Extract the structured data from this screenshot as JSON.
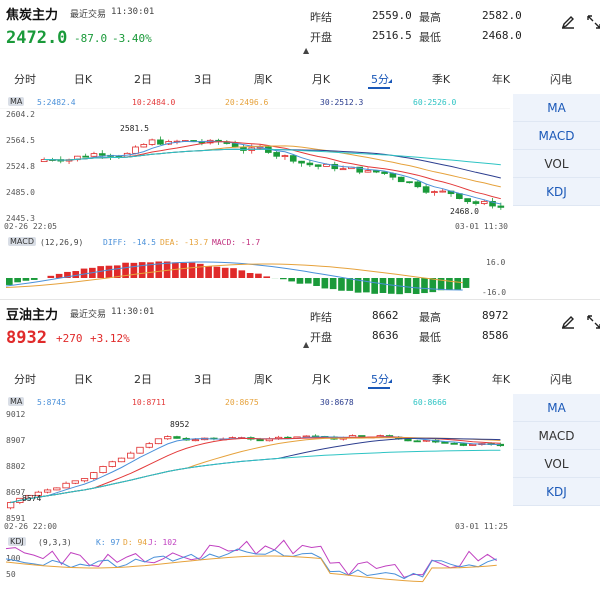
{
  "colors": {
    "up": "#e02a2a",
    "down": "#1a9a3a",
    "active": "#1a58b8",
    "ma5": "#4a90d9",
    "ma10": "#e33a3a",
    "ma20": "#e6a23c",
    "ma30": "#2c3e8f",
    "ma60": "#2ec4c4",
    "dif": "#4a90d9",
    "dea": "#e6a23c",
    "macd": "#c0307e",
    "k": "#4a90d9",
    "d": "#e6a23c",
    "j": "#c040c0"
  },
  "tabs": [
    "分时",
    "日K",
    "2日",
    "3日",
    "周K",
    "月K",
    "5分",
    "季K",
    "年K",
    "闪电"
  ],
  "side_menu": [
    "MA",
    "MACD",
    "VOL",
    "KDJ"
  ],
  "panels": [
    {
      "name": "焦炭主力",
      "time_label": "最近交易",
      "time": "11:30:01",
      "price": "2472.0",
      "change": "-87.0",
      "change_pct": "-3.40%",
      "quote": {
        "prev_close_label": "昨结",
        "prev_close": "2559.0",
        "high_label": "最高",
        "high": "2582.0",
        "open_label": "开盘",
        "open": "2516.5",
        "low_label": "最低",
        "low": "2468.0"
      },
      "ma_line": {
        "tag": "MA",
        "ma5": "5:2482.4",
        "ma10": "10:2484.0",
        "ma20": "20:2496.6",
        "ma30": "30:2512.3",
        "ma60": "60:2526.0"
      },
      "y_ticks": [
        "2604.2",
        "2564.5",
        "2524.8",
        "2485.0",
        "2445.3"
      ],
      "x_start": "02-26 22:05",
      "x_end": "03-01 11:30",
      "max_mark": "2581.5",
      "min_mark": "2468.0",
      "sub_tag": "MACD",
      "sub_params": "(12,26,9)",
      "sub_values": {
        "a": "DIFF: -14.5",
        "b": "DEA: -13.7",
        "c": "MACD: -1.7"
      },
      "sub_ticks": [
        "16.0",
        "-16.0"
      ],
      "side_active": [
        0,
        1,
        3
      ]
    },
    {
      "name": "豆油主力",
      "time_label": "最近交易",
      "time": "11:30:01",
      "price": "8932",
      "change": "+270",
      "change_pct": "+3.12%",
      "quote": {
        "prev_close_label": "昨结",
        "prev_close": "8662",
        "high_label": "最高",
        "high": "8972",
        "open_label": "开盘",
        "open": "8636",
        "low_label": "最低",
        "low": "8586"
      },
      "ma_line": {
        "tag": "MA",
        "ma5": "5:8745",
        "ma10": "10:8711",
        "ma20": "20:8675",
        "ma30": "30:8678",
        "ma60": "60:8666"
      },
      "y_ticks": [
        "9012",
        "8907",
        "8802",
        "8697",
        "8591"
      ],
      "x_start": "02-26 22:00",
      "x_end": "03-01 11:25",
      "max_mark": "8952",
      "min_mark": "8574",
      "sub_tag": "KDJ",
      "sub_params": "(9,3,3)",
      "sub_values": {
        "a": "K: 97",
        "b": "D: 94",
        "c": "J: 102"
      },
      "sub_ticks": [
        "100",
        "50"
      ],
      "side_active": [
        0,
        3
      ]
    }
  ]
}
